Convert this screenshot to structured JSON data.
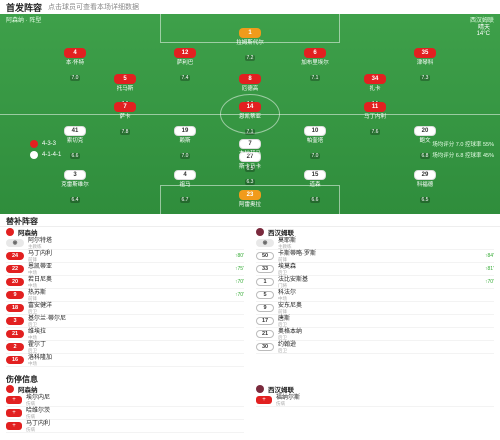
{
  "header": {
    "title": "首发阵容",
    "subtitle": "点击球员可查看本场详细数据"
  },
  "pitch": {
    "home_formation_label": "阿森纳 · 阵型",
    "away_formation_label": "西汉姆联",
    "weather": "晴天",
    "temperature": "14°C",
    "center_label": "主裁判 · 比赛信息",
    "home_formation": "4-3-3",
    "away_formation": "4-1-4-1",
    "home_stats": "场均评分 7.0  控球率 55%",
    "away_stats": "场均评分 6.8  控球率 45%"
  },
  "home_players": [
    {
      "num": "1",
      "name": "拉姆斯代尔",
      "rating": "7.2",
      "gk": true
    },
    {
      "num": "4",
      "name": "本·怀特",
      "rating": "7.0"
    },
    {
      "num": "12",
      "name": "萨利巴",
      "rating": "7.4"
    },
    {
      "num": "6",
      "name": "加布里埃尔",
      "rating": "7.1"
    },
    {
      "num": "35",
      "name": "津琴科",
      "rating": "7.3"
    },
    {
      "num": "5",
      "name": "托马斯",
      "rating": "7.0"
    },
    {
      "num": "8",
      "name": "厄德高",
      "rating": "7.9"
    },
    {
      "num": "34",
      "name": "扎卡",
      "rating": "7.5"
    },
    {
      "num": "7",
      "name": "萨卡",
      "rating": "7.8"
    },
    {
      "num": "14",
      "name": "恩凯蒂亚",
      "rating": "7.1"
    },
    {
      "num": "11",
      "name": "马丁内利",
      "rating": "7.6"
    }
  ],
  "away_players": [
    {
      "num": "23",
      "name": "阿雷奥拉",
      "rating": "6.9",
      "gk": true
    },
    {
      "num": "29",
      "name": "科福德",
      "rating": "6.5"
    },
    {
      "num": "15",
      "name": "道森",
      "rating": "6.6"
    },
    {
      "num": "4",
      "name": "祖马",
      "rating": "6.7"
    },
    {
      "num": "3",
      "name": "克雷斯维尔",
      "rating": "6.4"
    },
    {
      "num": "27",
      "name": "斯卡马卡",
      "rating": "6.3"
    },
    {
      "num": "20",
      "name": "鲍文",
      "rating": "6.8"
    },
    {
      "num": "10",
      "name": "帕奎塔",
      "rating": "7.0"
    },
    {
      "num": "19",
      "name": "赖斯",
      "rating": "7.0"
    },
    {
      "num": "41",
      "name": "索切克",
      "rating": "6.6"
    },
    {
      "num": "7",
      "name": "本拉赫马",
      "rating": "6.5"
    }
  ],
  "subs": {
    "title": "替补阵容",
    "home_team": "阿森纳",
    "away_team": "西汉姆联",
    "home_coach": {
      "name": "阿尔特塔",
      "role": "主教练"
    },
    "away_coach": {
      "name": "莫耶斯",
      "role": "主教练"
    },
    "home": [
      {
        "num": "24",
        "name": "马丁内利",
        "pos": "前锋",
        "min": "80'"
      },
      {
        "num": "22",
        "name": "恩凯蒂亚",
        "pos": "中场",
        "min": "75'"
      },
      {
        "num": "20",
        "name": "若日尼奥",
        "pos": "中场",
        "min": "70'"
      },
      {
        "num": "9",
        "name": "热苏斯",
        "pos": "前锋",
        "min": "70'"
      },
      {
        "num": "18",
        "name": "富安健洋",
        "pos": "后卫",
        "min": ""
      },
      {
        "num": "3",
        "name": "基尔兰·蒂尔尼",
        "pos": "后卫",
        "min": ""
      },
      {
        "num": "21",
        "name": "维埃拉",
        "pos": "中场",
        "min": ""
      },
      {
        "num": "2",
        "name": "霍尔丁",
        "pos": "后卫",
        "min": ""
      },
      {
        "num": "16",
        "name": "洛科隆加",
        "pos": "中场",
        "min": ""
      }
    ],
    "away": [
      {
        "num": "50",
        "name": "卡斯蒂略·罗斯",
        "pos": "前锋",
        "min": "84'"
      },
      {
        "num": "33",
        "name": "埃莫森",
        "pos": "后卫",
        "min": "81'"
      },
      {
        "num": "1",
        "name": "法比安斯基",
        "pos": "门将",
        "min": "70'"
      },
      {
        "num": "5",
        "name": "科法尔",
        "pos": "中场",
        "min": ""
      },
      {
        "num": "9",
        "name": "安东尼奥",
        "pos": "前锋",
        "min": ""
      },
      {
        "num": "17",
        "name": "唐斯",
        "pos": "后卫",
        "min": ""
      },
      {
        "num": "21",
        "name": "奥格本纳",
        "pos": "后卫",
        "min": ""
      },
      {
        "num": "30",
        "name": "约翰逊",
        "pos": "后卫",
        "min": ""
      }
    ]
  },
  "injuries": {
    "title": "伤停信息",
    "home_team": "阿森纳",
    "away_team": "西汉姆联",
    "home": [
      {
        "name": "埃尔内尼",
        "status": "伤病"
      },
      {
        "name": "哈维尔茨",
        "status": "伤病"
      },
      {
        "name": "马丁内利",
        "status": "伤病"
      }
    ],
    "away": [
      {
        "name": "福纳尔斯",
        "status": "伤病"
      }
    ]
  }
}
